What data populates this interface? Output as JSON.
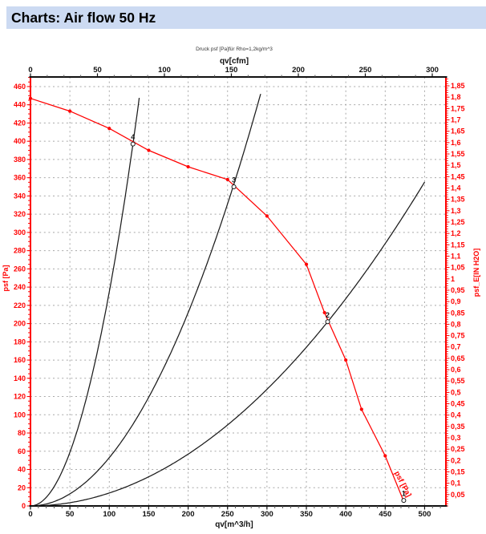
{
  "title": "Charts: Air flow 50 Hz",
  "colors": {
    "title_bar_bg": "#ccdaf2",
    "title_text": "#000000",
    "background": "#ffffff",
    "axis_red": "#ff0000",
    "axis_black": "#111111",
    "grid": "#a8a8a8"
  },
  "chart_data": {
    "type": "line",
    "subtitle": "Druck psf  [Pa]für Rho=1,2kg/m^3",
    "axes": {
      "top": {
        "label": "qv[cfm]",
        "range": [
          0,
          310.2
        ],
        "major_ticks": [
          0,
          50,
          100,
          150,
          200,
          250,
          300
        ],
        "minor_step": 12.5,
        "m3h_per_cfm": 1.699,
        "color": "#111111"
      },
      "bottom": {
        "label": "qv[m^3/h]",
        "range": [
          0,
          527
        ],
        "major_ticks": [
          0,
          50,
          100,
          150,
          200,
          250,
          300,
          350,
          400,
          450,
          500
        ],
        "minor_step": 10,
        "color": "#111111"
      },
      "left": {
        "label": "psf [Pa]",
        "range": [
          0,
          470.5
        ],
        "major_ticks": [
          0,
          20,
          40,
          60,
          80,
          100,
          120,
          140,
          160,
          180,
          200,
          220,
          240,
          260,
          280,
          300,
          320,
          340,
          360,
          380,
          400,
          420,
          440,
          460
        ],
        "minor_step": 5,
        "color": "#ff0000"
      },
      "right": {
        "label": "psf_E[IN H2O]",
        "range": [
          0,
          1.889
        ],
        "major_ticks": [
          0.05,
          0.1,
          0.15,
          0.2,
          0.25,
          0.3,
          0.35,
          0.4,
          0.45,
          0.5,
          0.55,
          0.6,
          0.65,
          0.7,
          0.75,
          0.8,
          0.85,
          0.9,
          0.95,
          1,
          1.05,
          1.1,
          1.15,
          1.2,
          1.25,
          1.3,
          1.35,
          1.4,
          1.45,
          1.5,
          1.55,
          1.6,
          1.65,
          1.7,
          1.75,
          1.8,
          1.85
        ],
        "minor_step": 0.01,
        "pa_per_unit": 249.08,
        "decimal_comma": true,
        "color": "#ff0000"
      }
    },
    "grid": {
      "h_step": 20,
      "v_step": 50,
      "color": "#a8a8a8",
      "dash": "2 3.6"
    },
    "series": [
      {
        "name": "fan-curve",
        "color": "#ff0000",
        "points": [
          [
            0,
            447
          ],
          [
            50,
            433
          ],
          [
            100,
            414
          ],
          [
            150,
            390
          ],
          [
            200,
            372
          ],
          [
            250,
            358
          ],
          [
            300,
            318
          ],
          [
            350,
            265
          ],
          [
            373,
            212
          ],
          [
            400,
            160
          ],
          [
            420,
            106
          ],
          [
            450,
            55
          ],
          [
            474,
            4
          ]
        ],
        "inline_label": {
          "text": "psf [Pa]",
          "qv": 455.5,
          "psf": 40,
          "angle_deg": 63
        }
      },
      {
        "name": "system-curve-steep",
        "color": "#1c1c1c",
        "parabola_k": 0.0235,
        "qv_range": [
          0,
          139
        ]
      },
      {
        "name": "system-curve-middle",
        "color": "#1c1c1c",
        "parabola_k": 0.0053,
        "qv_range": [
          0,
          292
        ]
      },
      {
        "name": "system-curve-shallow",
        "color": "#1c1c1c",
        "parabola_k": 0.001421,
        "qv_range": [
          0,
          500
        ]
      }
    ],
    "operating_points": [
      {
        "label": "4",
        "qv": 130,
        "psf": 397
      },
      {
        "label": "3",
        "qv": 258,
        "psf": 350
      },
      {
        "label": "2",
        "qv": 377,
        "psf": 202
      },
      {
        "label": "1",
        "qv": 473.5,
        "psf": 6
      }
    ]
  }
}
